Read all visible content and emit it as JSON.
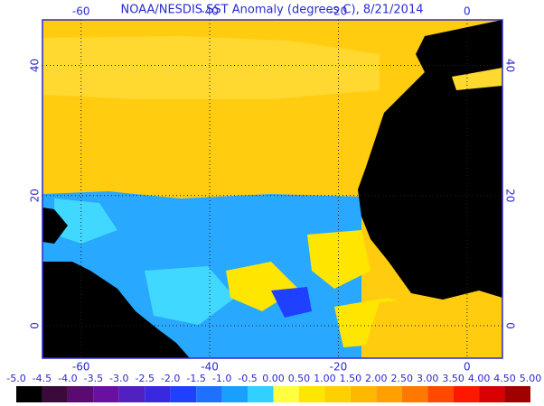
{
  "title": "NOAA/NESDIS SST Anomaly (degrees C), 8/21/2014",
  "map": {
    "lonlim": [
      -66,
      5.5
    ],
    "latlim": [
      -5,
      47
    ],
    "lonticks": [
      -60,
      -40,
      -20,
      0
    ],
    "latticks": [
      0,
      20,
      40
    ]
  },
  "colorbar": {
    "ticks": [
      {
        "value": -5,
        "label": "-5.0"
      },
      {
        "value": -4.5,
        "label": "-4.5"
      },
      {
        "value": -4,
        "label": "-4.0"
      },
      {
        "value": -3.5,
        "label": "-3.5"
      },
      {
        "value": -3,
        "label": "-3.0"
      },
      {
        "value": -2.5,
        "label": "-2.5"
      },
      {
        "value": -2,
        "label": "-2.0"
      },
      {
        "value": -1.5,
        "label": "-1.5"
      },
      {
        "value": -1,
        "label": "-1.0"
      },
      {
        "value": -0.5,
        "label": "-0.5"
      },
      {
        "value": 0,
        "label": "0.00"
      },
      {
        "value": 0.5,
        "label": "0.50"
      },
      {
        "value": 1,
        "label": "1.00"
      },
      {
        "value": 1.5,
        "label": "1.50"
      },
      {
        "value": 2,
        "label": "2.00"
      },
      {
        "value": 2.5,
        "label": "2.50"
      },
      {
        "value": 3,
        "label": "3.00"
      },
      {
        "value": 3.5,
        "label": "3.50"
      },
      {
        "value": 4,
        "label": "4.00"
      },
      {
        "value": 4.5,
        "label": "4.50"
      },
      {
        "value": 5,
        "label": "5.00"
      }
    ],
    "colors": [
      "#000000",
      "#3a0a3a",
      "#5a0a70",
      "#6a10a0",
      "#5020c0",
      "#3828e0",
      "#2040ff",
      "#2070ff",
      "#18a0ff",
      "#30d0ff",
      "#ffff40",
      "#ffe600",
      "#ffd000",
      "#ffb800",
      "#ffa000",
      "#ff7800",
      "#ff4800",
      "#ff1800",
      "#d80000",
      "#a00000"
    ]
  }
}
